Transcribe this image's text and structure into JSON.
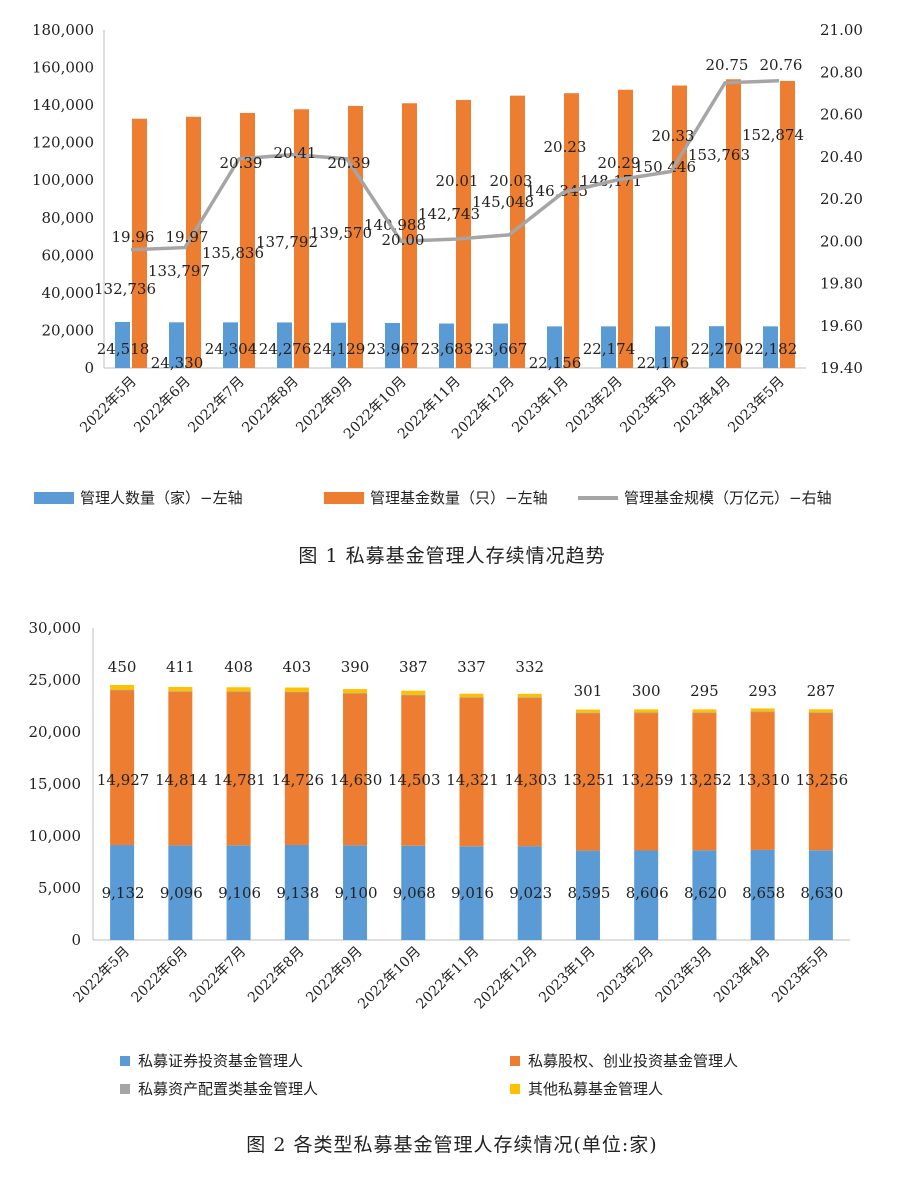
{
  "figure1": {
    "caption": "图 1 私募基金管理人存续情况趋势",
    "chart_data": {
      "type": "bar",
      "categories": [
        "2022年5月",
        "2022年6月",
        "2022年7月",
        "2022年8月",
        "2022年9月",
        "2022年10月",
        "2022年11月",
        "2022年12月",
        "2023年1月",
        "2023年2月",
        "2023年3月",
        "2023年4月",
        "2023年5月"
      ],
      "ylim_left": [
        0,
        180000
      ],
      "ylim_right": [
        19.4,
        21.0
      ],
      "left_ticks": [
        "0",
        "20,000",
        "40,000",
        "60,000",
        "80,000",
        "100,000",
        "120,000",
        "140,000",
        "160,000",
        "180,000"
      ],
      "right_ticks": [
        "19.40",
        "19.60",
        "19.80",
        "20.00",
        "20.20",
        "20.40",
        "20.60",
        "20.80",
        "21.00"
      ],
      "series": [
        {
          "name": "管理人数量（家）−左轴",
          "kind": "bar",
          "color": "#5B9BD5",
          "values": [
            24518,
            24330,
            24304,
            24276,
            24129,
            23967,
            23683,
            23667,
            22156,
            22174,
            22176,
            22270,
            22182
          ],
          "labels": [
            "24,518",
            "24,330",
            "24,304",
            "24,276",
            "24,129",
            "23,967",
            "23,683",
            "23,667",
            "22,156",
            "22,174",
            "22,176",
            "22,270",
            "22,182"
          ]
        },
        {
          "name": "管理基金数量（只）−左轴",
          "kind": "bar",
          "color": "#ED7D31",
          "values": [
            132736,
            133797,
            135836,
            137792,
            139570,
            140988,
            142743,
            145048,
            146345,
            148171,
            150446,
            153763,
            152874
          ],
          "labels": [
            "132,736",
            "133,797",
            "135,836",
            "137,792",
            "139,570",
            "140,988",
            "142,743",
            "145,048",
            "146,345",
            "148,171",
            "150,446",
            "153,763",
            "152,874"
          ]
        },
        {
          "name": "管理基金规模（万亿元）−右轴",
          "kind": "line",
          "color": "#A5A5A5",
          "values": [
            19.96,
            19.97,
            20.39,
            20.41,
            20.39,
            20.0,
            20.01,
            20.03,
            20.23,
            20.29,
            20.33,
            20.75,
            20.76
          ],
          "labels": [
            "19.96",
            "19.97",
            "20.39",
            "20.41",
            "20.39",
            "20.00",
            "20.01",
            "20.03",
            "20.23",
            "20.29",
            "20.33",
            "20.75",
            "20.76"
          ]
        }
      ]
    }
  },
  "figure2": {
    "caption": "图 2 各类型私募基金管理人存续情况(单位:家)",
    "chart_data": {
      "type": "bar",
      "stacked": true,
      "categories": [
        "2022年5月",
        "2022年6月",
        "2022年7月",
        "2022年8月",
        "2022年9月",
        "2022年10月",
        "2022年11月",
        "2022年12月",
        "2023年1月",
        "2023年2月",
        "2023年3月",
        "2023年4月",
        "2023年5月"
      ],
      "ylim": [
        0,
        30000
      ],
      "y_ticks": [
        "0",
        "5,000",
        "10,000",
        "15,000",
        "20,000",
        "25,000",
        "30,000"
      ],
      "series": [
        {
          "name": "私募证券投资基金管理人",
          "color": "#5B9BD5",
          "values": [
            9132,
            9096,
            9106,
            9138,
            9100,
            9068,
            9016,
            9023,
            8595,
            8606,
            8620,
            8658,
            8630
          ],
          "labels": [
            "9,132",
            "9,096",
            "9,106",
            "9,138",
            "9,100",
            "9,068",
            "9,016",
            "9,023",
            "8,595",
            "8,606",
            "8,620",
            "8,658",
            "8,630"
          ]
        },
        {
          "name": "私募股权、创业投资基金管理人",
          "color": "#ED7D31",
          "values": [
            14927,
            14814,
            14781,
            14726,
            14630,
            14503,
            14321,
            14303,
            13251,
            13259,
            13252,
            13310,
            13256
          ],
          "labels": [
            "14,927",
            "14,814",
            "14,781",
            "14,726",
            "14,630",
            "14,503",
            "14,321",
            "14,303",
            "13,251",
            "13,259",
            "13,252",
            "13,310",
            "13,256"
          ]
        },
        {
          "name": "私募资产配置类基金管理人",
          "color": "#A5A5A5",
          "values": [
            9,
            9,
            9,
            9,
            9,
            9,
            9,
            9,
            9,
            9,
            9,
            9,
            9
          ],
          "labels": []
        },
        {
          "name": "其他私募基金管理人",
          "color": "#FFC000",
          "values": [
            450,
            411,
            408,
            403,
            390,
            387,
            337,
            332,
            301,
            300,
            295,
            293,
            287
          ],
          "labels": [
            "450",
            "411",
            "408",
            "403",
            "390",
            "387",
            "337",
            "332",
            "301",
            "300",
            "295",
            "293",
            "287"
          ]
        }
      ]
    }
  }
}
